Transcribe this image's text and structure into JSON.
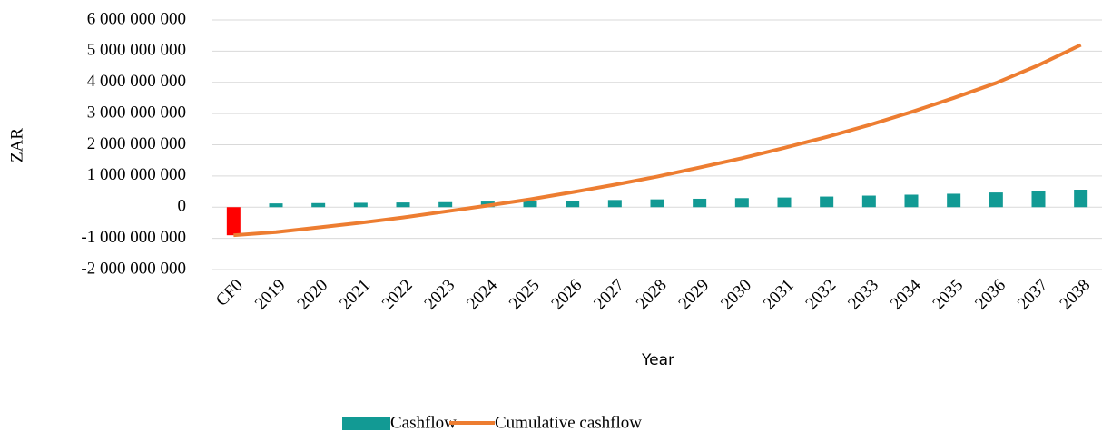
{
  "chart_data": {
    "type": "bar_line",
    "x_label": "Year",
    "y_label": "ZAR",
    "categories": [
      "CF0",
      "2019",
      "2020",
      "2021",
      "2022",
      "2023",
      "2024",
      "2025",
      "2026",
      "2027",
      "2028",
      "2029",
      "2030",
      "2031",
      "2032",
      "2033",
      "2034",
      "2035",
      "2036",
      "2037",
      "2038"
    ],
    "series": [
      {
        "name": "Cashflow",
        "type": "bar",
        "color": "#129a94",
        "negative_color": "#ff0000",
        "values": [
          -900000000,
          120000000,
          130000000,
          140000000,
          150000000,
          160000000,
          180000000,
          190000000,
          210000000,
          230000000,
          250000000,
          270000000,
          290000000,
          310000000,
          340000000,
          370000000,
          400000000,
          430000000,
          470000000,
          510000000,
          560000000
        ]
      },
      {
        "name": "Cumulative cashflow",
        "type": "line",
        "color": "#ed7d31",
        "values": [
          -900000000,
          -800000000,
          -650000000,
          -500000000,
          -330000000,
          -140000000,
          50000000,
          250000000,
          480000000,
          720000000,
          980000000,
          1270000000,
          1570000000,
          1900000000,
          2250000000,
          2630000000,
          3050000000,
          3500000000,
          3980000000,
          4550000000,
          5200000000
        ]
      }
    ],
    "ylim": [
      -2000000000,
      6000000000
    ],
    "yticks": [
      {
        "value": -2000000000,
        "label": "-2 000 000 000"
      },
      {
        "value": -1000000000,
        "label": "-1 000 000 000"
      },
      0,
      {
        "value": 1000000000,
        "label": "1 000 000 000"
      },
      {
        "value": 2000000000,
        "label": "2 000 000 000"
      },
      {
        "value": 3000000000,
        "label": "3 000 000 000"
      },
      {
        "value": 4000000000,
        "label": "4 000 000 000"
      },
      {
        "value": 5000000000,
        "label": "5 000 000 000"
      },
      {
        "value": 6000000000,
        "label": "6 000 000 000"
      }
    ],
    "negative_tick_color": "#ff0000",
    "grid": true,
    "legend": "bottom"
  }
}
